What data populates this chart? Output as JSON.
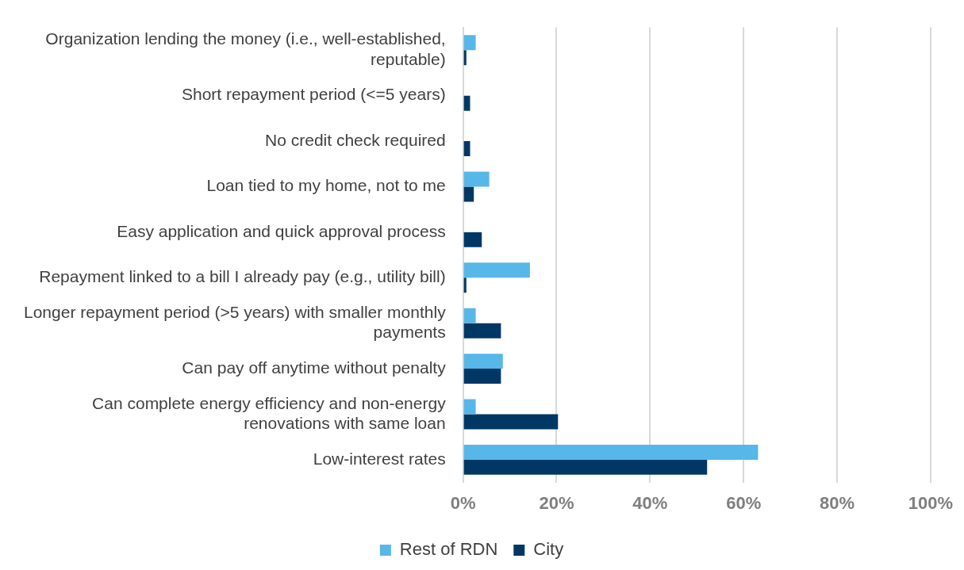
{
  "chart_data": {
    "type": "bar",
    "orientation": "horizontal",
    "categories": [
      "Organization lending the money (i.e., well-established, reputable)",
      "Short repayment period (<=5 years)",
      "No credit check required",
      "Loan tied to my home, not to me",
      "Easy application and quick approval process",
      "Repayment linked to a bill I already pay (e.g., utility bill)",
      "Longer repayment period (>5 years) with smaller monthly payments",
      "Can pay off anytime without penalty",
      "Can complete energy efficiency and non-energy renovations with same loan",
      "Low-interest rates"
    ],
    "series": [
      {
        "name": "Rest of RDN",
        "color": "#56b7e8",
        "values": [
          2.7,
          0,
          0,
          5.6,
          0,
          14.3,
          2.7,
          8.5,
          2.7,
          63.1
        ]
      },
      {
        "name": "City",
        "color": "#003764",
        "values": [
          0.7,
          1.5,
          1.5,
          2.3,
          4.0,
          0.7,
          8.1,
          8.1,
          20.3,
          52.2
        ]
      }
    ],
    "xlim": [
      0,
      100
    ],
    "xticks": [
      {
        "value": 0,
        "label": "0%"
      },
      {
        "value": 20,
        "label": "20%"
      },
      {
        "value": 40,
        "label": "40%"
      },
      {
        "value": 60,
        "label": "60%"
      },
      {
        "value": 80,
        "label": "80%"
      },
      {
        "value": 100,
        "label": "100%"
      }
    ],
    "grid": "x",
    "legend": "bottom"
  }
}
